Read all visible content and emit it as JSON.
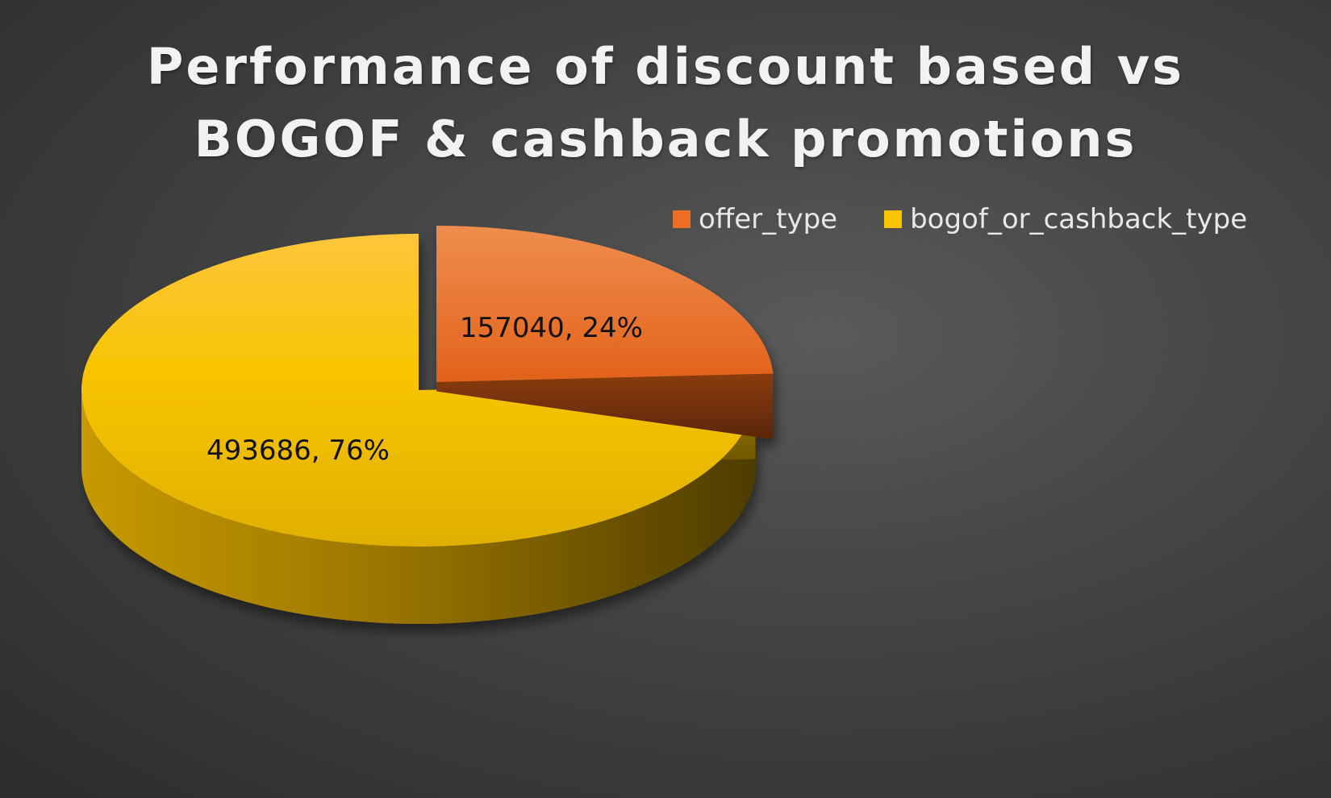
{
  "chart_data": {
    "type": "pie",
    "title": "Performance of discount based vs BOGOF & cashback promotions",
    "title_lines": [
      "Performance of discount based vs",
      "BOGOF & cashback promotions"
    ],
    "legend_position": "top-right",
    "three_d": true,
    "slices": [
      {
        "name": "offer_type",
        "value": 157040,
        "percent": 24,
        "label": "157040, 24%",
        "color": "#ea6f24",
        "exploded": true
      },
      {
        "name": "bogof_or_cashback_type",
        "value": 493686,
        "percent": 76,
        "label": "493686,  76%",
        "color": "#f8c400",
        "exploded": false
      }
    ]
  }
}
